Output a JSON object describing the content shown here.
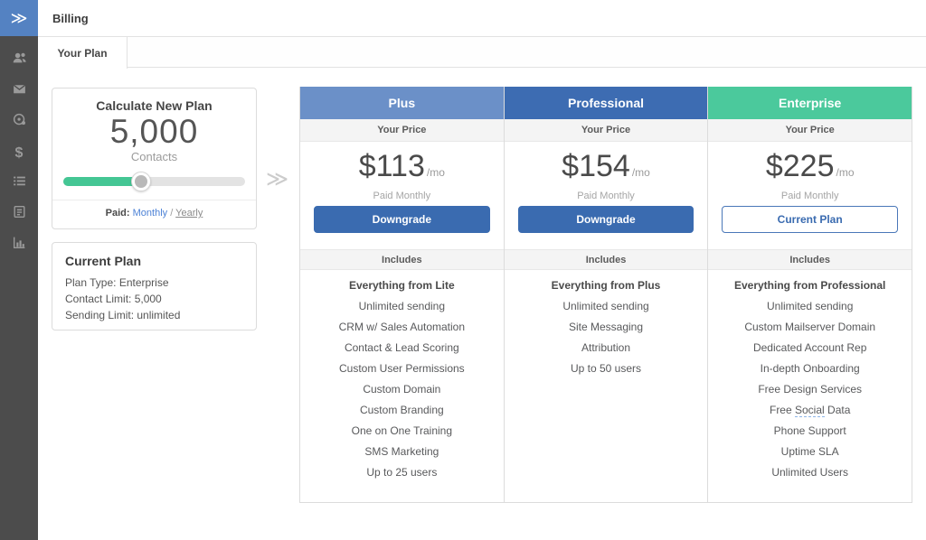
{
  "header": {
    "title": "Billing"
  },
  "logo": {
    "glyph": "≫"
  },
  "sidebar": {
    "icons": [
      "contacts",
      "campaigns",
      "automations",
      "deals",
      "lists",
      "forms",
      "reports"
    ]
  },
  "tabs": {
    "your_plan": "Your Plan"
  },
  "calculator": {
    "title": "Calculate New Plan",
    "contacts_value": "5,000",
    "contacts_label": "Contacts",
    "slider_percent": 43,
    "paid_label": "Paid:",
    "monthly": "Monthly",
    "separator": "/",
    "yearly": "Yearly"
  },
  "current_plan": {
    "title": "Current Plan",
    "plan_type": "Plan Type: Enterprise",
    "contact_limit": "Contact Limit: 5,000",
    "sending_limit": "Sending Limit: unlimited"
  },
  "divider_chevron": "≫",
  "plans": [
    {
      "name": "Plus",
      "your_price_label": "Your Price",
      "price": "$113",
      "per": "/mo",
      "billing_note": "Paid Monthly",
      "button_label": "Downgrade",
      "includes_label": "Includes",
      "features": [
        "Everything from Lite",
        "Unlimited sending",
        "CRM w/ Sales Automation",
        "Contact & Lead Scoring",
        "Custom User Permissions",
        "Custom Domain",
        "Custom Branding",
        "One on One Training",
        "SMS Marketing",
        "Up to 25 users"
      ]
    },
    {
      "name": "Professional",
      "your_price_label": "Your Price",
      "price": "$154",
      "per": "/mo",
      "billing_note": "Paid Monthly",
      "button_label": "Downgrade",
      "includes_label": "Includes",
      "features": [
        "Everything from Plus",
        "Unlimited sending",
        "Site Messaging",
        "Attribution",
        "Up to 50 users"
      ]
    },
    {
      "name": "Enterprise",
      "your_price_label": "Your Price",
      "price": "$225",
      "per": "/mo",
      "billing_note": "Paid Monthly",
      "button_label": "Current Plan",
      "includes_label": "Includes",
      "features": [
        "Everything from Professional",
        "Unlimited sending",
        "Custom Mailserver Domain",
        "Dedicated Account Rep",
        "In-depth Onboarding",
        "Free Design Services",
        {
          "prefix": "Free ",
          "link": "Social",
          "suffix": " Data"
        },
        "Phone Support",
        "Uptime SLA",
        "Unlimited Users"
      ]
    }
  ],
  "colors": {
    "sidebar_bg": "#4c4c4c",
    "logo_bg": "#5482c2",
    "plus_header": "#6b90c8",
    "professional_header": "#3d6cb2",
    "enterprise_header": "#4bc99c",
    "primary_button": "#3a6bb0",
    "slider_fill": "#44c694",
    "link_blue": "#4d82d6"
  }
}
